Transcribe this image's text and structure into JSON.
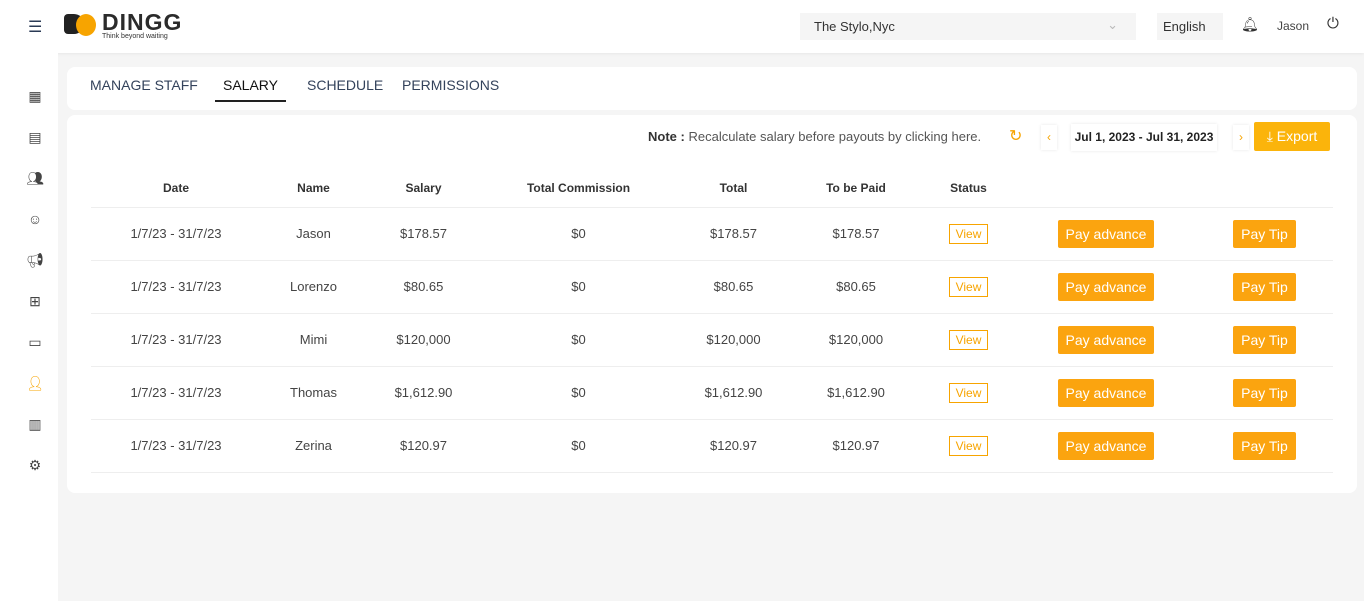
{
  "header": {
    "brand": "DINGG",
    "tagline": "Think beyond waiting",
    "store": "The Stylo,Nyc",
    "language": "English",
    "user": "Jason"
  },
  "sidebar": {
    "icons": [
      "calendar-icon",
      "receipt-icon",
      "customers-icon",
      "client-face-icon",
      "megaphone-icon",
      "hierarchy-icon",
      "store-icon",
      "staff-icon",
      "reports-icon",
      "settings-icon"
    ],
    "active": 7,
    "accent": "#f7a400"
  },
  "tabs": [
    {
      "label": "MANAGE STAFF"
    },
    {
      "label": "SALARY",
      "active": true
    },
    {
      "label": "SCHEDULE"
    },
    {
      "label": "PERMISSIONS"
    }
  ],
  "toolbar": {
    "note_label": "Note :",
    "note_text": "Recalculate salary before payouts by clicking here.",
    "prev": "‹",
    "next": "›",
    "date_range": "Jul 1, 2023 - Jul 31, 2023",
    "export": "Export"
  },
  "table": {
    "headers": [
      "Date",
      "Name",
      "Salary",
      "Total Commission",
      "Total",
      "To be Paid",
      "Status",
      "",
      ""
    ],
    "rows": [
      {
        "date": "1/7/23 - 31/7/23",
        "name": "Jason",
        "salary": "$178.57",
        "commission": "$0",
        "total": "$178.57",
        "to_be_paid": "$178.57",
        "status": "View",
        "advance": "Pay advance",
        "tip": "Pay Tip"
      },
      {
        "date": "1/7/23 - 31/7/23",
        "name": "Lorenzo",
        "salary": "$80.65",
        "commission": "$0",
        "total": "$80.65",
        "to_be_paid": "$80.65",
        "status": "View",
        "advance": "Pay advance",
        "tip": "Pay Tip"
      },
      {
        "date": "1/7/23 - 31/7/23",
        "name": "Mimi",
        "salary": "$120,000",
        "commission": "$0",
        "total": "$120,000",
        "to_be_paid": "$120,000",
        "status": "View",
        "advance": "Pay advance",
        "tip": "Pay Tip"
      },
      {
        "date": "1/7/23 - 31/7/23",
        "name": "Thomas",
        "salary": "$1,612.90",
        "commission": "$0",
        "total": "$1,612.90",
        "to_be_paid": "$1,612.90",
        "status": "View",
        "advance": "Pay advance",
        "tip": "Pay Tip"
      },
      {
        "date": "1/7/23 - 31/7/23",
        "name": "Zerina",
        "salary": "$120.97",
        "commission": "$0",
        "total": "$120.97",
        "to_be_paid": "$120.97",
        "status": "View",
        "advance": "Pay advance",
        "tip": "Pay Tip"
      }
    ]
  }
}
